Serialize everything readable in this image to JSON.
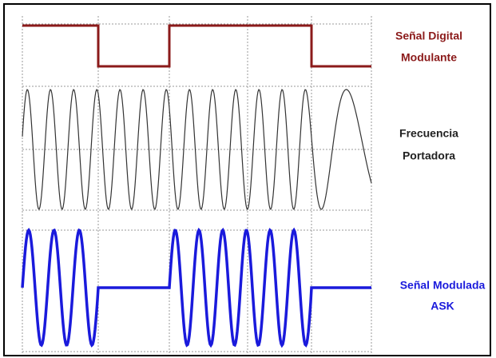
{
  "labels": [
    {
      "lines": [
        "Señal Digital",
        "Modulante"
      ]
    },
    {
      "lines": [
        "Frecuencia",
        "Portadora"
      ]
    },
    {
      "lines": [
        "Señal Modulada",
        "ASK"
      ]
    }
  ]
}
